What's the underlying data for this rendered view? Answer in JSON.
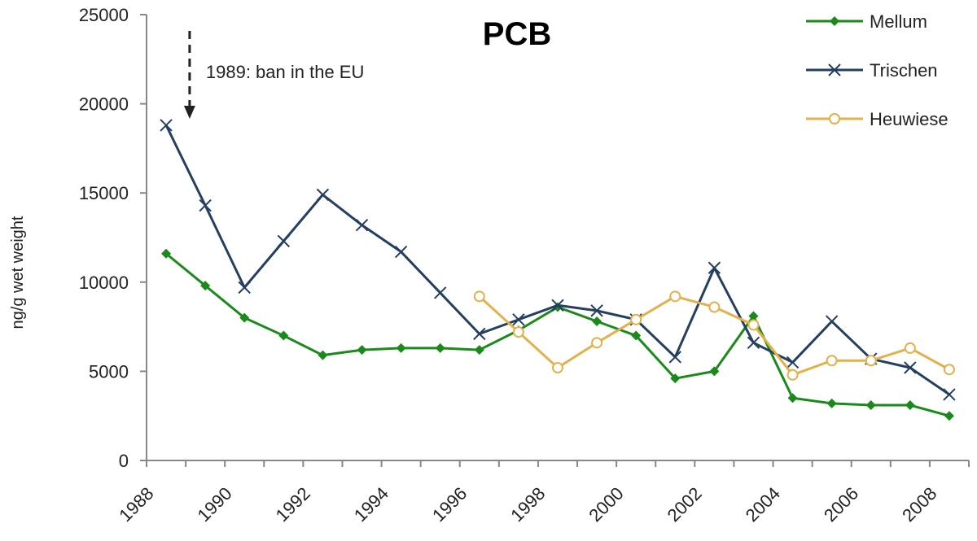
{
  "chart_data": {
    "type": "line",
    "title": "PCB",
    "ylabel": "ng/g wet weight",
    "xlabel": "",
    "xlim": [
      1988,
      2009
    ],
    "ylim": [
      0,
      25000
    ],
    "y_ticks": [
      0,
      5000,
      10000,
      15000,
      20000,
      25000
    ],
    "x_tick_labels": [
      "1988",
      "1990",
      "1992",
      "1994",
      "1996",
      "1998",
      "2000",
      "2002",
      "2004",
      "2006",
      "2008"
    ],
    "grid": false,
    "legend_position": "top-right",
    "annotation": {
      "text": "1989: ban in the EU",
      "x": 1989.1
    },
    "series": [
      {
        "name": "Mellum",
        "color": "#1a8a1a",
        "marker": "diamond",
        "x": [
          1988.5,
          1989.5,
          1990.5,
          1991.5,
          1992.5,
          1993.5,
          1994.5,
          1995.5,
          1996.5,
          1997.5,
          1998.5,
          1999.5,
          2000.5,
          2001.5,
          2002.5,
          2003.5,
          2004.5,
          2005.5,
          2006.5,
          2007.5,
          2008.5
        ],
        "values": [
          11600,
          9800,
          8000,
          7000,
          5900,
          6200,
          6300,
          6300,
          6200,
          7300,
          8600,
          7800,
          7000,
          4600,
          5000,
          8100,
          3500,
          3200,
          3100,
          3100,
          2500
        ]
      },
      {
        "name": "Trischen",
        "color": "#243f60",
        "marker": "x",
        "x": [
          1988.5,
          1989.5,
          1990.5,
          1991.5,
          1992.5,
          1993.5,
          1994.5,
          1995.5,
          1996.5,
          1997.5,
          1998.5,
          1999.5,
          2000.5,
          2001.5,
          2002.5,
          2003.5,
          2004.5,
          2005.5,
          2006.5,
          2007.5,
          2008.5
        ],
        "values": [
          18800,
          14300,
          9700,
          12300,
          14900,
          13200,
          11700,
          9400,
          7100,
          7900,
          8700,
          8400,
          7900,
          5800,
          10800,
          6600,
          5500,
          7800,
          5700,
          5200,
          3700
        ]
      },
      {
        "name": "Heuwiese",
        "color": "#e4b04a",
        "marker": "circle",
        "x": [
          1996.5,
          1997.5,
          1998.5,
          1999.5,
          2000.5,
          2001.5,
          2002.5,
          2003.5,
          2004.5,
          2005.5,
          2006.5,
          2007.5,
          2008.5
        ],
        "values": [
          9200,
          7200,
          5200,
          6600,
          7900,
          9200,
          8600,
          7600,
          4800,
          5600,
          5600,
          6300,
          5100
        ]
      }
    ]
  }
}
